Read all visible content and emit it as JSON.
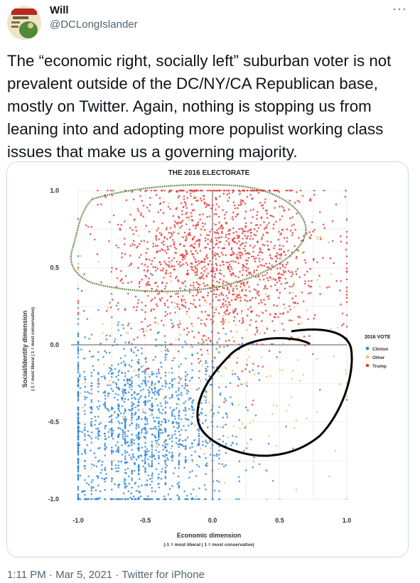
{
  "author": {
    "name": "Will",
    "handle": "@DCLongIslander"
  },
  "tweet": {
    "text": "The “economic right, socially left” suburban voter is not prevalent outside of the DC/NY/CA Republican base, mostly on Twitter. Again, nothing is stopping us from leaning into and adopting more populist working class issues that make us a governing majority."
  },
  "footer": {
    "time": "1:11 PM",
    "date": "Mar 5, 2021",
    "separator": "·",
    "source": "Twitter for iPhone"
  },
  "chart_data": {
    "type": "scatter",
    "title": "THE 2016 ELECTORATE",
    "xlabel": "Economic dimension",
    "xlabel_sub": "(-1 = most liberal | 1 = most conservative)",
    "ylabel": "Social/Identity dimension",
    "ylabel_sub": "(-1 = most liberal | 1 = most conservative)",
    "xlim": [
      -1.0,
      1.0
    ],
    "ylim": [
      -1.0,
      1.0
    ],
    "xticks": [
      "-1.0",
      "-0.5",
      "0.0",
      "0.5",
      "1.0"
    ],
    "yticks": [
      "1.0",
      "0.5",
      "0.0",
      "-0.5",
      "-1.0"
    ],
    "grid": true,
    "legend": {
      "title": "2016 VOTE",
      "placement": "right",
      "entries": [
        "Clinton",
        "Other",
        "Trump"
      ]
    },
    "series": [
      {
        "name": "Clinton",
        "color": "#2f86d6",
        "center": [
          -0.55,
          -0.55
        ],
        "spread": [
          0.35,
          0.32
        ],
        "count": 1600
      },
      {
        "name": "Other",
        "color": "#e2c95c",
        "center": [
          0.05,
          -0.05
        ],
        "spread": [
          0.5,
          0.5
        ],
        "count": 260
      },
      {
        "name": "Trump",
        "color": "#e23b3b",
        "center": [
          0.05,
          0.55
        ],
        "spread": [
          0.4,
          0.3
        ],
        "count": 1500
      }
    ],
    "annotations": [
      {
        "type": "hand-drawn-loop",
        "color": "#4f7a3a",
        "region": "upper center, around x -1.0..0.75, y 0.45..1.1"
      },
      {
        "type": "hand-drawn-loop",
        "color": "#000000",
        "region": "lower right, around x -0.1..1.1, y -0.75..0.12"
      }
    ]
  }
}
